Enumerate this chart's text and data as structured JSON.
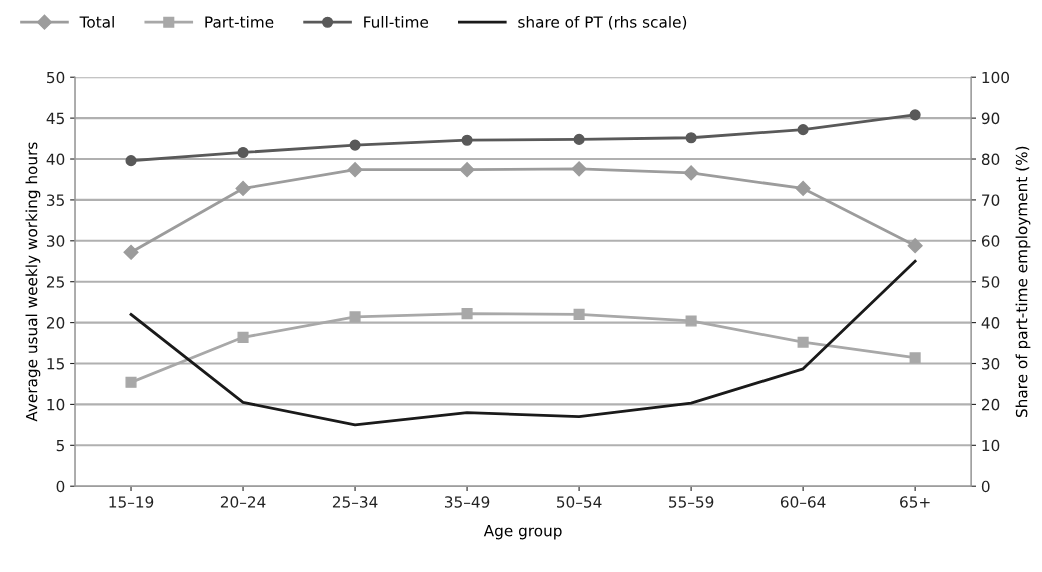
{
  "chart_data": {
    "type": "line",
    "xlabel": "Age group",
    "ylabel": "Average usual weekly working hours",
    "y2label": "Share of part-time employment (%)",
    "categories": [
      "15–19",
      "20–24",
      "25–34",
      "35–49",
      "50–54",
      "55–59",
      "60–64",
      "65+"
    ],
    "series": [
      {
        "name": "Total",
        "color": "#9c9c9c",
        "marker": "diamond",
        "values": [
          28.6,
          36.4,
          38.7,
          38.7,
          38.8,
          38.3,
          36.4,
          29.4
        ]
      },
      {
        "name": "Part-time",
        "color": "#a8a8a8",
        "marker": "square",
        "values": [
          12.7,
          18.2,
          20.7,
          21.1,
          21.0,
          20.2,
          17.6,
          15.7
        ]
      },
      {
        "name": "Full-time",
        "color": "#595959",
        "marker": "circle",
        "values": [
          39.8,
          40.8,
          41.7,
          42.3,
          42.4,
          42.6,
          43.6,
          45.4
        ]
      },
      {
        "name": "share of PT (rhs scale)",
        "color": "#1a1a1a",
        "marker": "none",
        "axis": "y2",
        "values": [
          42,
          20.5,
          15,
          18,
          17,
          20.3,
          28.7,
          55
        ]
      }
    ],
    "ylim": [
      0,
      50
    ],
    "yticks": [
      0,
      5,
      10,
      15,
      20,
      25,
      30,
      35,
      40,
      45,
      50
    ],
    "y2lim": [
      0,
      100
    ],
    "y2ticks": [
      0,
      10,
      20,
      30,
      40,
      50,
      60,
      70,
      80,
      90,
      100
    ],
    "grid": "y",
    "legend": "top left"
  }
}
